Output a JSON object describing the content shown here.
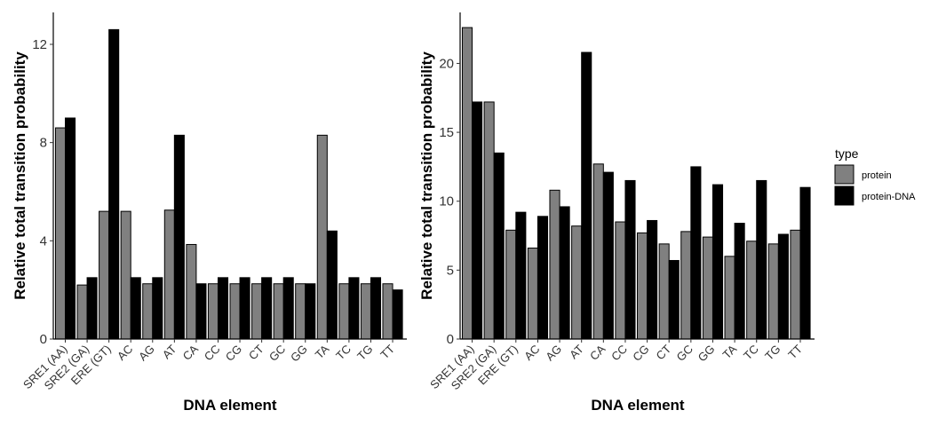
{
  "chart_data": [
    {
      "type": "bar",
      "xlabel": "DNA element",
      "ylabel": "Relative total transition probability",
      "ylim": [
        0,
        13.3
      ],
      "yticks": [
        0,
        4,
        8,
        12
      ],
      "categories": [
        "SRE1 (AA)",
        "SRE2 (GA)",
        "ERE (GT)",
        "AC",
        "AG",
        "AT",
        "CA",
        "CC",
        "CG",
        "CT",
        "GC",
        "GG",
        "TA",
        "TC",
        "TG",
        "TT"
      ],
      "series": [
        {
          "name": "protein",
          "values": [
            8.6,
            2.2,
            5.2,
            5.2,
            2.25,
            5.25,
            3.85,
            2.25,
            2.25,
            2.25,
            2.25,
            2.25,
            8.3,
            2.25,
            2.25,
            2.25
          ]
        },
        {
          "name": "protein-DNA",
          "values": [
            9.0,
            2.5,
            12.6,
            2.5,
            2.5,
            8.3,
            2.25,
            2.5,
            2.5,
            2.5,
            2.5,
            2.25,
            4.4,
            2.5,
            2.5,
            2.0
          ]
        }
      ]
    },
    {
      "type": "bar",
      "xlabel": "DNA element",
      "ylabel": "Relative total transition probability",
      "ylim": [
        0,
        23.7
      ],
      "yticks": [
        0,
        5,
        10,
        15,
        20
      ],
      "categories": [
        "SRE1 (AA)",
        "SRE2 (GA)",
        "ERE (GT)",
        "AC",
        "AG",
        "AT",
        "CA",
        "CC",
        "CG",
        "CT",
        "GC",
        "GG",
        "TA",
        "TC",
        "TG",
        "TT"
      ],
      "series": [
        {
          "name": "protein",
          "values": [
            22.6,
            17.2,
            7.9,
            6.6,
            10.8,
            8.2,
            12.7,
            8.5,
            7.7,
            6.9,
            7.8,
            7.4,
            6.0,
            7.1,
            6.9,
            7.9
          ]
        },
        {
          "name": "protein-DNA",
          "values": [
            17.2,
            13.5,
            9.2,
            8.9,
            9.6,
            20.8,
            12.1,
            11.5,
            8.6,
            5.7,
            12.5,
            11.2,
            8.4,
            11.5,
            7.6,
            11.0
          ]
        }
      ]
    }
  ],
  "legend": {
    "title": "type",
    "items": [
      {
        "label": "protein",
        "color": "#808080"
      },
      {
        "label": "protein-DNA",
        "color": "#000000"
      }
    ]
  },
  "colors": {
    "protein": "#808080",
    "protein-DNA": "#000000",
    "bar_outline": "#000000"
  }
}
